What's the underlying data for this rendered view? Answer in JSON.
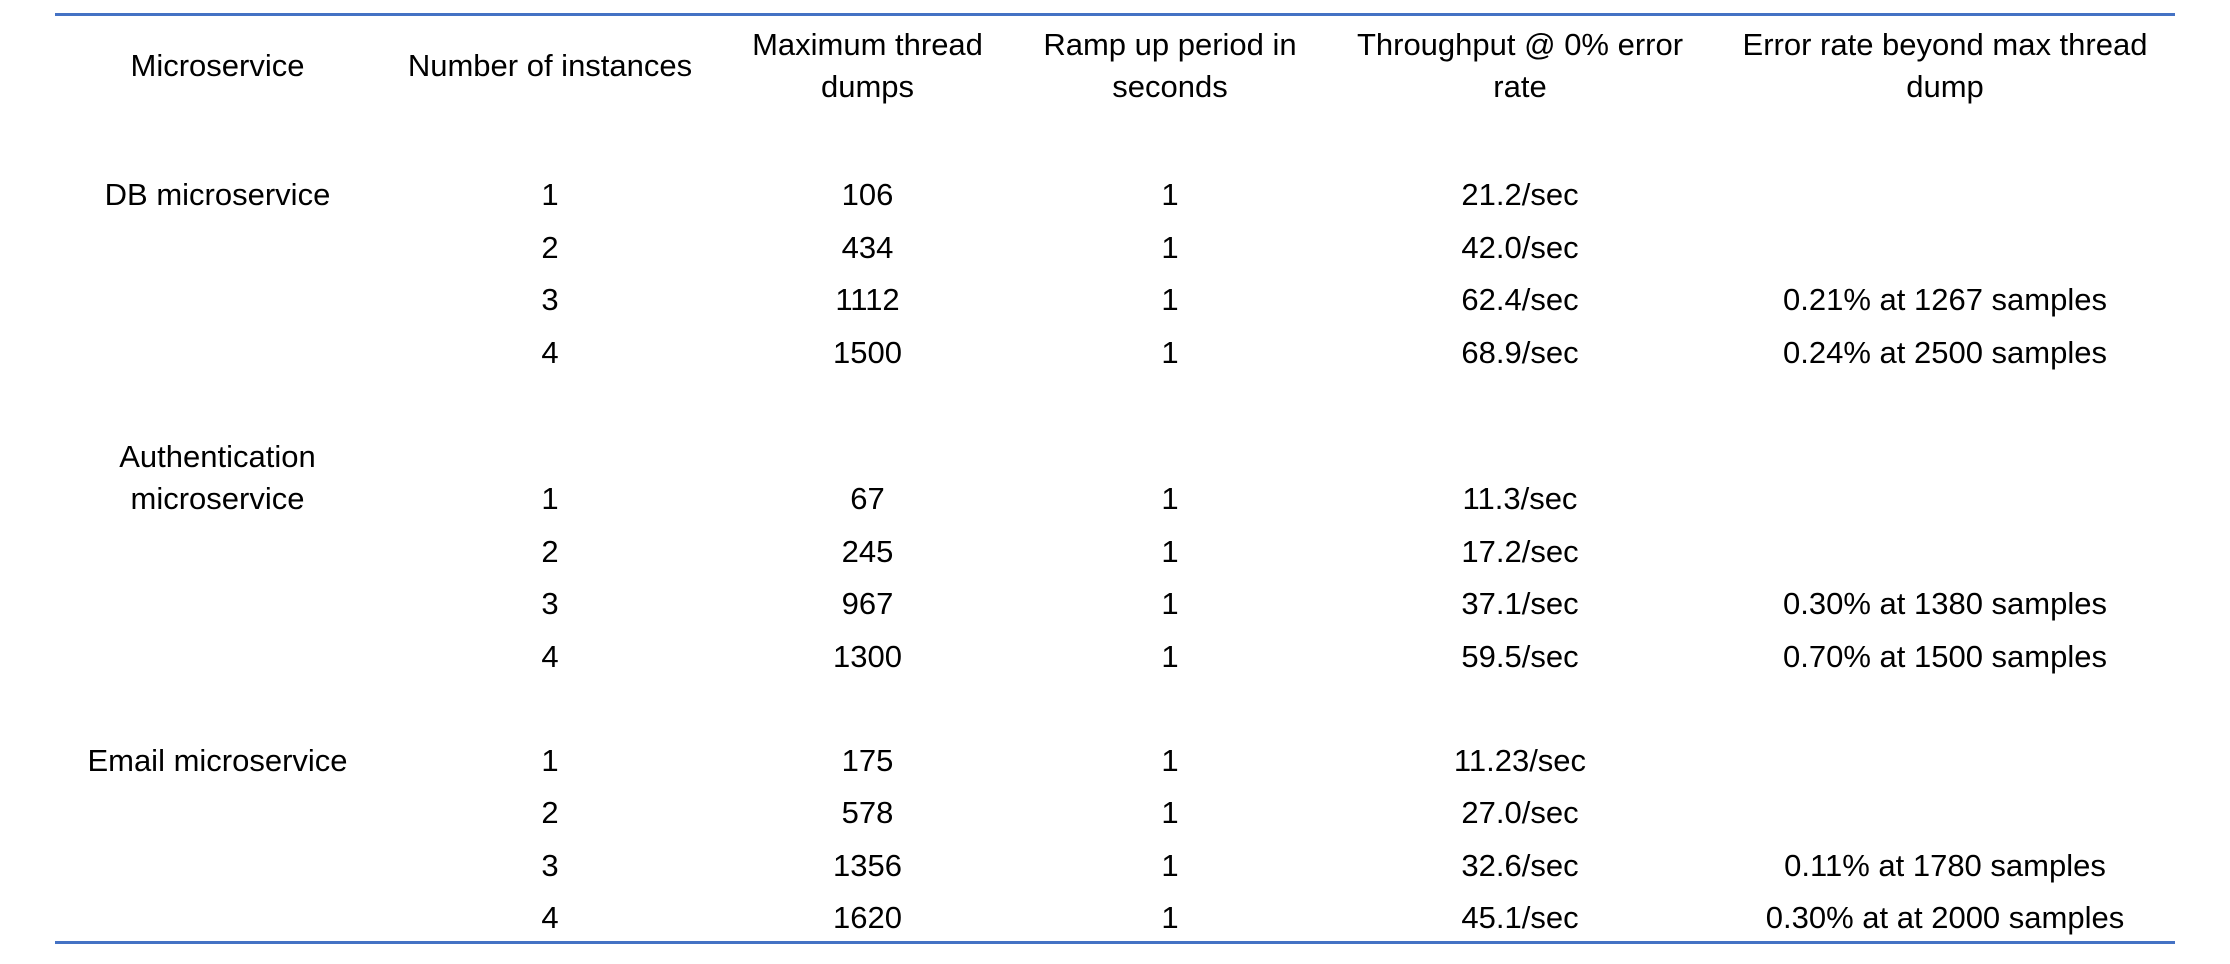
{
  "table": {
    "headers": [
      "Microservice",
      "Number of instances",
      "Maximum thread dumps",
      "Ramp up period in seconds",
      "Throughput @ 0% error rate",
      "Error rate beyond max thread dump"
    ],
    "groups": [
      {
        "name": "DB microservice",
        "rows": [
          {
            "instances": "1",
            "max_threads": "106",
            "ramp_up": "1",
            "throughput": "21.2/sec",
            "error_rate": ""
          },
          {
            "instances": "2",
            "max_threads": "434",
            "ramp_up": "1",
            "throughput": "42.0/sec",
            "error_rate": ""
          },
          {
            "instances": "3",
            "max_threads": "1112",
            "ramp_up": "1",
            "throughput": "62.4/sec",
            "error_rate": "0.21% at 1267 samples"
          },
          {
            "instances": "4",
            "max_threads": "1500",
            "ramp_up": "1",
            "throughput": "68.9/sec",
            "error_rate": "0.24% at 2500 samples"
          }
        ]
      },
      {
        "name": "Authentication microservice",
        "rows": [
          {
            "instances": "1",
            "max_threads": "67",
            "ramp_up": "1",
            "throughput": "11.3/sec",
            "error_rate": ""
          },
          {
            "instances": "2",
            "max_threads": "245",
            "ramp_up": "1",
            "throughput": "17.2/sec",
            "error_rate": ""
          },
          {
            "instances": "3",
            "max_threads": "967",
            "ramp_up": "1",
            "throughput": "37.1/sec",
            "error_rate": "0.30% at 1380 samples"
          },
          {
            "instances": "4",
            "max_threads": "1300",
            "ramp_up": "1",
            "throughput": "59.5/sec",
            "error_rate": "0.70% at 1500 samples"
          }
        ]
      },
      {
        "name": "Email microservice",
        "rows": [
          {
            "instances": "1",
            "max_threads": "175",
            "ramp_up": "1",
            "throughput": "11.23/sec",
            "error_rate": ""
          },
          {
            "instances": "2",
            "max_threads": "578",
            "ramp_up": "1",
            "throughput": "27.0/sec",
            "error_rate": ""
          },
          {
            "instances": "3",
            "max_threads": "1356",
            "ramp_up": "1",
            "throughput": "32.6/sec",
            "error_rate": "0.11% at 1780 samples"
          },
          {
            "instances": "4",
            "max_threads": "1620",
            "ramp_up": "1",
            "throughput": "45.1/sec",
            "error_rate": "0.30% at at 2000 samples"
          }
        ]
      }
    ]
  },
  "colors": {
    "rule": "#4472c4",
    "text": "#000000"
  }
}
